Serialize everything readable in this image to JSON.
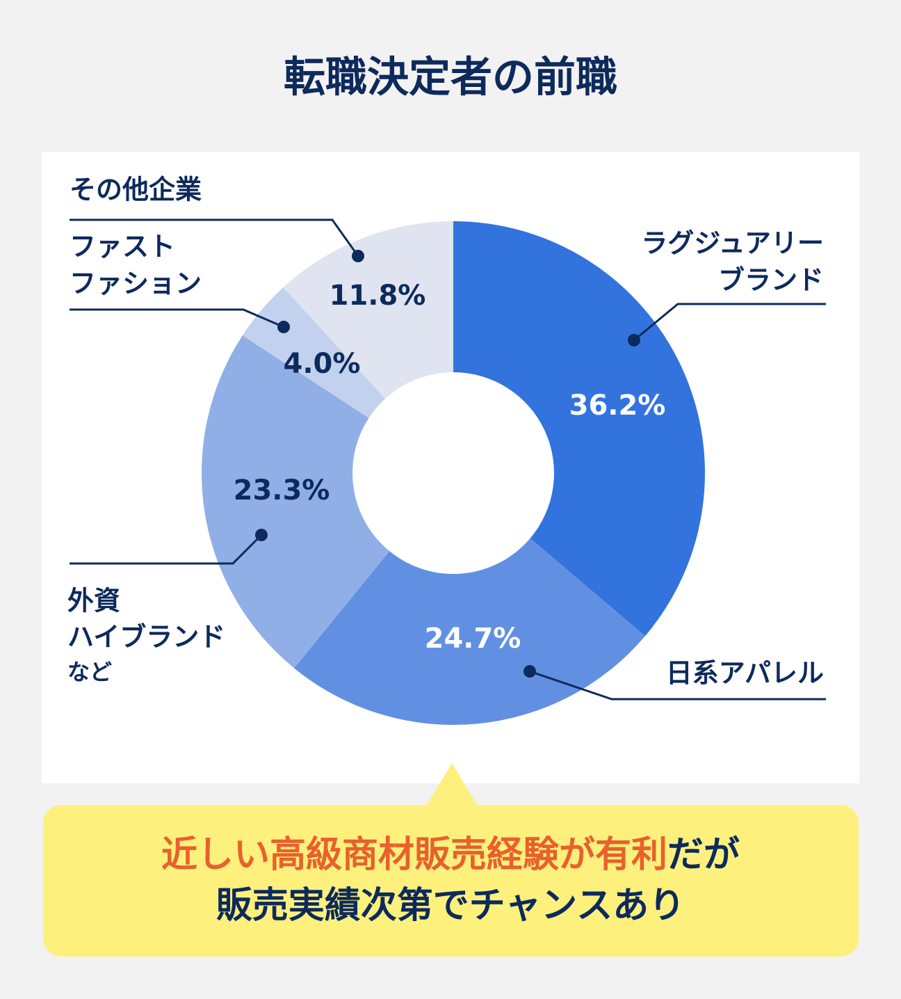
{
  "chart_data": {
    "type": "donut",
    "title": "転職決定者の前職",
    "categories": [
      [
        "ラグジュアリー",
        "ブランド"
      ],
      [
        "日系アパレル"
      ],
      [
        "外資",
        "ハイブランド",
        "など"
      ],
      [
        "ファスト",
        "ファション"
      ],
      [
        "その他企業"
      ]
    ],
    "values": [
      36.2,
      24.7,
      23.3,
      4.0,
      11.8
    ],
    "value_labels": [
      "36.2%",
      "24.7%",
      "23.3%",
      "4.0%",
      "11.8%"
    ],
    "colors": [
      "#3373de",
      "#6190e3",
      "#8fafe6",
      "#c2d2ee",
      "#dfe4f0"
    ],
    "callout": {
      "highlight": "近しい高級商材販売経験が有利",
      "rest": "だが",
      "line2": "販売実績次第でチャンスあり"
    }
  }
}
